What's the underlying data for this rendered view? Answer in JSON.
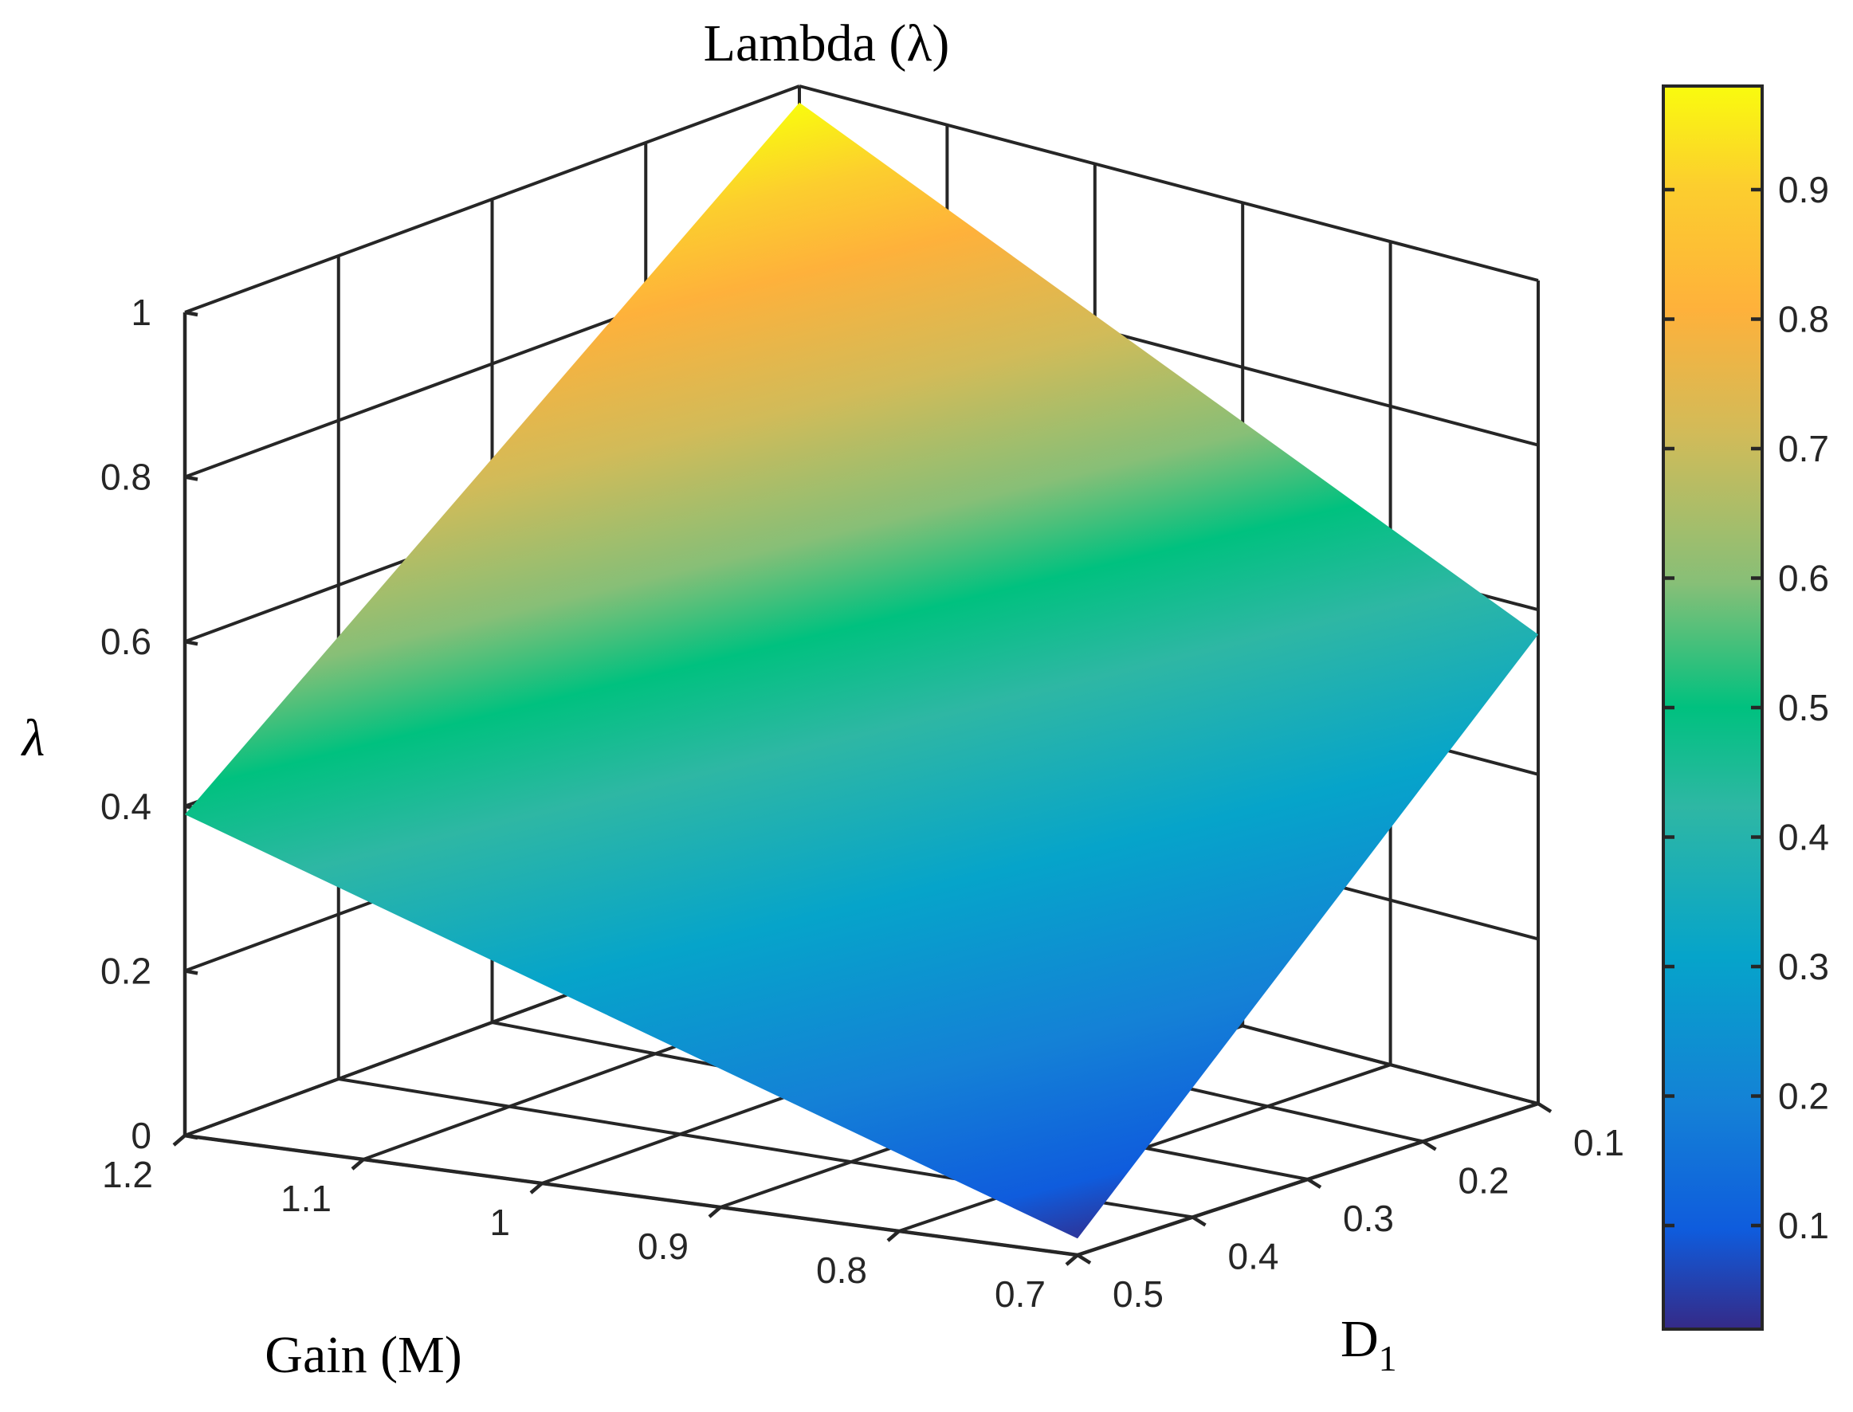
{
  "chart_data": {
    "type": "surface",
    "title": "Lambda (λ)",
    "xlabel": "Gain (M)",
    "ylabel_main": "D",
    "ylabel_sub": "1",
    "zlabel": "λ",
    "x_ticks": [
      "0.7",
      "0.8",
      "0.9",
      "1",
      "1.1",
      "1.2"
    ],
    "y_ticks": [
      "0.1",
      "0.2",
      "0.3",
      "0.4",
      "0.5"
    ],
    "z_ticks": [
      "0",
      "0.2",
      "0.4",
      "0.6",
      "0.8",
      "1"
    ],
    "x_range": [
      0.7,
      1.2
    ],
    "y_range": [
      0.1,
      0.5
    ],
    "z_range": [
      0,
      1
    ],
    "grid": true,
    "surface_corners": [
      {
        "gain": 1.2,
        "d1": 0.1,
        "lambda": 0.98
      },
      {
        "gain": 1.2,
        "d1": 0.5,
        "lambda": 0.39
      },
      {
        "gain": 0.7,
        "d1": 0.5,
        "lambda": 0.02
      },
      {
        "gain": 0.7,
        "d1": 0.1,
        "lambda": 0.57
      }
    ],
    "colorbar": {
      "colormap": "parula",
      "range": [
        0.02,
        0.98
      ],
      "ticks": [
        "0.1",
        "0.2",
        "0.3",
        "0.4",
        "0.5",
        "0.6",
        "0.7",
        "0.8",
        "0.9"
      ],
      "placement": "right"
    }
  }
}
